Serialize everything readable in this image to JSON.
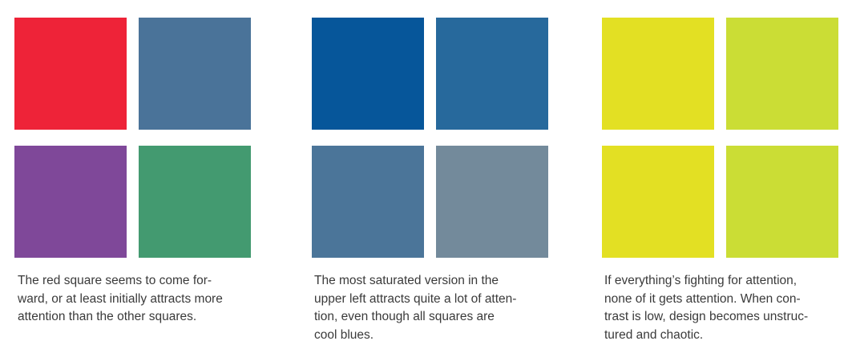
{
  "panels": [
    {
      "swatches": [
        {
          "label": "red",
          "color": "#ee2338"
        },
        {
          "label": "blue-gray",
          "color": "#4a7399"
        },
        {
          "label": "purple",
          "color": "#7f4899"
        },
        {
          "label": "green",
          "color": "#439a70"
        }
      ],
      "caption_lines": [
        "The red square seems to come for-",
        "ward, or at least initially attracts more",
        "attention than the other squares."
      ]
    },
    {
      "swatches": [
        {
          "label": "saturated-blue",
          "color": "#06569a"
        },
        {
          "label": "medium-blue",
          "color": "#27699c"
        },
        {
          "label": "steel-blue",
          "color": "#4b7599"
        },
        {
          "label": "gray-blue",
          "color": "#738a9b"
        }
      ],
      "caption_lines": [
        "The most saturated version in the",
        "upper left attracts quite a lot of atten-",
        "tion, even though all squares are",
        "cool blues."
      ]
    },
    {
      "swatches": [
        {
          "label": "yellow",
          "color": "#e3e023"
        },
        {
          "label": "yellow-green",
          "color": "#cbdd35"
        },
        {
          "label": "yellow",
          "color": "#e3e023"
        },
        {
          "label": "yellow-green",
          "color": "#cbdd35"
        }
      ],
      "caption_lines": [
        "If everything’s fighting for attention,",
        "none of it gets attention. When con-",
        "trast is low, design becomes unstruc-",
        "tured and chaotic."
      ]
    }
  ]
}
